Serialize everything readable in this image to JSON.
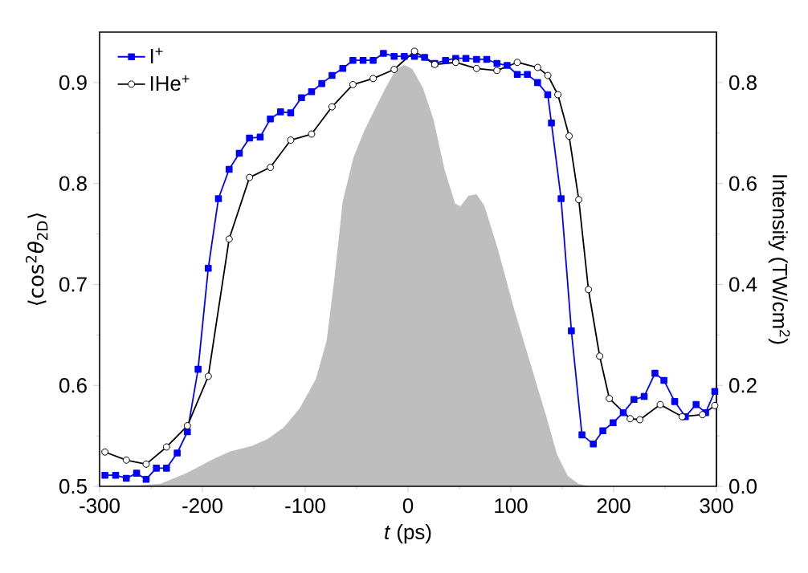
{
  "chart_data": {
    "type": "line",
    "xlabel": "*t* (ps)",
    "ylabel": "⟨cos$^{2}$*θ*$_{2D}$⟩",
    "y2label": "Intensity (TW/cm$^{2}$)",
    "xlim": [
      -300,
      300
    ],
    "xticks": [
      -300,
      -200,
      -100,
      0,
      100,
      200,
      300
    ],
    "ylim": [
      0.5,
      0.95
    ],
    "yticks": [
      0.5,
      0.6,
      0.7,
      0.8,
      0.9
    ],
    "y2lim": [
      0,
      0.9
    ],
    "y2ticks": [
      {
        "value": 0,
        "label": "0.0"
      },
      {
        "value": 0.2,
        "label": "0.2"
      },
      {
        "value": 0.4,
        "label": "0.4"
      },
      {
        "value": 0.6,
        "label": "0.6"
      },
      {
        "value": 0.8,
        "label": "0.8"
      }
    ],
    "legend": "top left",
    "series": [
      {
        "type": "area",
        "axis": "y2",
        "color": "#bebebe",
        "marker": "none",
        "x": [
          -300,
          -261.5,
          -240.6,
          -214.6,
          -188.5,
          -172.9,
          -152,
          -136.5,
          -120.8,
          -105.2,
          -89.6,
          -79.2,
          -71.4,
          -63.5,
          -53.1,
          -42.7,
          -32.3,
          -21.9,
          -11.5,
          -3.6,
          4.2,
          14.6,
          25,
          35.4,
          45.8,
          51,
          58.9,
          66.7,
          74.5,
          87.5,
          103.1,
          118.8,
          134.4,
          144.8,
          155.2,
          165.6,
          176,
          300
        ],
        "values": [
          0,
          0.002,
          0.005,
          0.027,
          0.055,
          0.069,
          0.08,
          0.094,
          0.117,
          0.155,
          0.213,
          0.288,
          0.416,
          0.565,
          0.651,
          0.704,
          0.747,
          0.789,
          0.827,
          0.835,
          0.827,
          0.789,
          0.725,
          0.629,
          0.56,
          0.555,
          0.576,
          0.579,
          0.555,
          0.469,
          0.352,
          0.245,
          0.139,
          0.064,
          0.021,
          0.005,
          0,
          0
        ]
      },
      {
        "name": "I$^{+}$",
        "color": "#0000ff",
        "marker": "square",
        "x": [
          -294.8,
          -284.4,
          -274,
          -264,
          -254.7,
          -244.8,
          -234.9,
          -224.5,
          -214.6,
          -204.2,
          -194.3,
          -184.4,
          -174,
          -164.1,
          -154.2,
          -143.8,
          -133.9,
          -124,
          -114.1,
          -103.6,
          -93.8,
          -83.9,
          -73.9,
          -63.5,
          -53.6,
          -43.7,
          -33.9,
          -23.9,
          -13.5,
          -3.6,
          6.3,
          16.1,
          26,
          36.5,
          46.4,
          56.3,
          66.7,
          76.6,
          86.5,
          96.4,
          106.3,
          116.1,
          126,
          135.9,
          139.5,
          148.9,
          158.9,
          169.2,
          180.2,
          189.5,
          199.5,
          209.4,
          219.8,
          229.7,
          240.2,
          248.9,
          259.4,
          269.8,
          280.2,
          289.5,
          298.4
        ],
        "values": [
          0.511,
          0.511,
          0.508,
          0.513,
          0.507,
          0.518,
          0.518,
          0.533,
          0.554,
          0.616,
          0.716,
          0.785,
          0.814,
          0.83,
          0.845,
          0.846,
          0.864,
          0.871,
          0.87,
          0.885,
          0.891,
          0.899,
          0.907,
          0.914,
          0.922,
          0.922,
          0.922,
          0.929,
          0.926,
          0.926,
          0.926,
          0.925,
          0.919,
          0.922,
          0.924,
          0.924,
          0.923,
          0.923,
          0.919,
          0.917,
          0.908,
          0.908,
          0.9,
          0.888,
          0.86,
          0.785,
          0.654,
          0.551,
          0.542,
          0.555,
          0.563,
          0.573,
          0.586,
          0.589,
          0.612,
          0.605,
          0.584,
          0.569,
          0.581,
          0.573,
          0.594
        ]
      },
      {
        "name": "IHe$^{+}$",
        "color": "#000000",
        "marker": "circle",
        "x": [
          -294.8,
          -274,
          -254.7,
          -234.9,
          -214.6,
          -194.3,
          -174,
          -154.2,
          -133.9,
          -114.1,
          -93.8,
          -73.9,
          -53.6,
          -33.9,
          -13.5,
          6.3,
          26,
          46.4,
          66.7,
          86.5,
          106.3,
          126.1,
          136,
          145.8,
          156.7,
          166.1,
          175.5,
          186.4,
          195.8,
          216.1,
          225.5,
          245.3,
          266.7,
          286.4,
          298.4
        ],
        "values": [
          0.534,
          0.526,
          0.522,
          0.539,
          0.56,
          0.609,
          0.745,
          0.806,
          0.816,
          0.843,
          0.849,
          0.876,
          0.898,
          0.904,
          0.913,
          0.931,
          0.918,
          0.92,
          0.914,
          0.912,
          0.92,
          0.915,
          0.907,
          0.888,
          0.847,
          0.784,
          0.695,
          0.629,
          0.587,
          0.567,
          0.566,
          0.581,
          0.569,
          0.571,
          0.58
        ]
      }
    ]
  }
}
